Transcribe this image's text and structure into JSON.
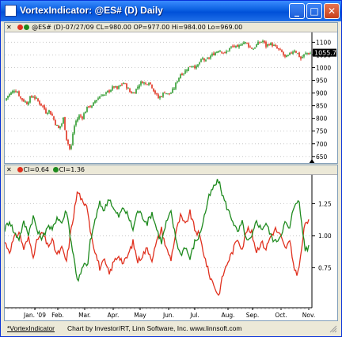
{
  "window": {
    "title": "VortexIndicator: @ES# (D) Daily",
    "buttons": {
      "minimize": "_",
      "maximize": "□",
      "close": "✕"
    }
  },
  "price_panel": {
    "close_glyph": "✕",
    "header": "@ES# (D)-07/27/09 CL=980.00 OP=977.00 Hi=984.00 Lo=969.00",
    "last_price_label": "1055.75",
    "colors": {
      "up": "#2e9b2e",
      "down": "#e0301e",
      "price_tag_bg": "#000000"
    }
  },
  "indicator_panel": {
    "close_glyph": "✕",
    "legend": [
      {
        "label": "CI=0.64",
        "color": "#e0301e"
      },
      {
        "label": "CI=1.36",
        "color": "#1e8a1e"
      }
    ]
  },
  "footer": {
    "link": "*VortexIndicator",
    "credit": "Chart by Investor/RT, Linn Software, Inc. www.linnsoft.com"
  },
  "chart_data": [
    {
      "type": "candlestick",
      "ylim": [
        640,
        1120
      ],
      "yticks": [
        650,
        700,
        750,
        800,
        850,
        900,
        950,
        1000,
        1050,
        1100
      ],
      "last_value": 1055.75,
      "anchors": [
        [
          0,
          870
        ],
        [
          4,
          890
        ],
        [
          8,
          900
        ],
        [
          12,
          912
        ],
        [
          16,
          905
        ],
        [
          20,
          880
        ],
        [
          24,
          870
        ],
        [
          28,
          860
        ],
        [
          32,
          880
        ],
        [
          36,
          888
        ],
        [
          40,
          875
        ],
        [
          44,
          860
        ],
        [
          48,
          848
        ],
        [
          52,
          825
        ],
        [
          56,
          830
        ],
        [
          60,
          810
        ],
        [
          64,
          780
        ],
        [
          68,
          760
        ],
        [
          72,
          780
        ],
        [
          74,
          800
        ],
        [
          76,
          760
        ],
        [
          78,
          720
        ],
        [
          80,
          700
        ],
        [
          82,
          680
        ],
        [
          84,
          690
        ],
        [
          86,
          740
        ],
        [
          88,
          770
        ],
        [
          90,
          790
        ],
        [
          94,
          810
        ],
        [
          98,
          805
        ],
        [
          102,
          830
        ],
        [
          106,
          850
        ],
        [
          110,
          845
        ],
        [
          114,
          870
        ],
        [
          118,
          880
        ],
        [
          122,
          895
        ],
        [
          126,
          890
        ],
        [
          130,
          905
        ],
        [
          134,
          915
        ],
        [
          138,
          925
        ],
        [
          142,
          915
        ],
        [
          146,
          930
        ],
        [
          150,
          940
        ],
        [
          154,
          925
        ],
        [
          158,
          905
        ],
        [
          162,
          900
        ],
        [
          166,
          915
        ],
        [
          170,
          935
        ],
        [
          174,
          945
        ],
        [
          178,
          935
        ],
        [
          182,
          945
        ],
        [
          186,
          925
        ],
        [
          190,
          900
        ],
        [
          194,
          880
        ],
        [
          198,
          890
        ],
        [
          202,
          905
        ],
        [
          206,
          895
        ],
        [
          210,
          900
        ],
        [
          214,
          920
        ],
        [
          218,
          950
        ],
        [
          222,
          975
        ],
        [
          226,
          980
        ],
        [
          230,
          995
        ],
        [
          234,
          1005
        ],
        [
          238,
          1010
        ],
        [
          242,
          1000
        ],
        [
          246,
          1020
        ],
        [
          250,
          1035
        ],
        [
          254,
          1025
        ],
        [
          258,
          1040
        ],
        [
          262,
          1050
        ],
        [
          266,
          1060
        ],
        [
          270,
          1070
        ],
        [
          274,
          1065
        ],
        [
          278,
          1055
        ],
        [
          282,
          1070
        ],
        [
          286,
          1080
        ],
        [
          290,
          1085
        ],
        [
          294,
          1075
        ],
        [
          298,
          1095
        ],
        [
          302,
          1100
        ],
        [
          306,
          1095
        ],
        [
          310,
          1080
        ],
        [
          314,
          1075
        ],
        [
          318,
          1090
        ],
        [
          322,
          1100
        ],
        [
          326,
          1105
        ],
        [
          330,
          1085
        ],
        [
          334,
          1095
        ],
        [
          338,
          1090
        ],
        [
          342,
          1080
        ],
        [
          346,
          1070
        ],
        [
          350,
          1060
        ],
        [
          354,
          1040
        ],
        [
          358,
          1045
        ],
        [
          362,
          1060
        ],
        [
          366,
          1070
        ],
        [
          370,
          1055
        ],
        [
          374,
          1035
        ],
        [
          378,
          1050
        ],
        [
          382,
          1058
        ],
        [
          385,
          1056
        ]
      ]
    },
    {
      "type": "line",
      "ylim": [
        0.45,
        1.45
      ],
      "yticks": [
        0.75,
        1.0,
        1.25
      ],
      "xlabels": [
        "Jan. '09",
        "Feb.",
        "Mar.",
        "Apr.",
        "May",
        "Jun.",
        "Jul.",
        "Aug.",
        "Sep.",
        "Oct.",
        "Nov."
      ],
      "series": [
        {
          "name": "CI=0.64",
          "color": "#e0301e",
          "anchors": [
            [
              0,
              0.95
            ],
            [
              6,
              0.88
            ],
            [
              12,
              0.98
            ],
            [
              18,
              1.03
            ],
            [
              24,
              0.9
            ],
            [
              30,
              0.98
            ],
            [
              36,
              0.85
            ],
            [
              42,
              0.98
            ],
            [
              48,
              1.02
            ],
            [
              54,
              0.92
            ],
            [
              60,
              0.96
            ],
            [
              66,
              0.85
            ],
            [
              72,
              0.9
            ],
            [
              78,
              0.8
            ],
            [
              84,
              1.05
            ],
            [
              88,
              1.2
            ],
            [
              92,
              1.35
            ],
            [
              96,
              1.3
            ],
            [
              100,
              1.22
            ],
            [
              104,
              1.25
            ],
            [
              108,
              1.05
            ],
            [
              114,
              0.88
            ],
            [
              120,
              0.75
            ],
            [
              126,
              0.8
            ],
            [
              132,
              0.7
            ],
            [
              138,
              0.8
            ],
            [
              144,
              0.85
            ],
            [
              150,
              0.78
            ],
            [
              156,
              0.85
            ],
            [
              162,
              0.95
            ],
            [
              168,
              0.8
            ],
            [
              174,
              0.85
            ],
            [
              180,
              0.9
            ],
            [
              186,
              0.82
            ],
            [
              192,
              0.95
            ],
            [
              198,
              1.05
            ],
            [
              204,
              0.9
            ],
            [
              210,
              0.82
            ],
            [
              216,
              1.02
            ],
            [
              222,
              1.15
            ],
            [
              228,
              1.08
            ],
            [
              234,
              1.18
            ],
            [
              240,
              1.05
            ],
            [
              246,
              1.0
            ],
            [
              252,
              0.85
            ],
            [
              258,
              0.7
            ],
            [
              264,
              0.62
            ],
            [
              270,
              0.53
            ],
            [
              276,
              0.7
            ],
            [
              282,
              0.8
            ],
            [
              288,
              0.88
            ],
            [
              294,
              0.98
            ],
            [
              300,
              0.9
            ],
            [
              306,
              1.05
            ],
            [
              312,
              1.02
            ],
            [
              318,
              0.88
            ],
            [
              324,
              0.95
            ],
            [
              330,
              0.9
            ],
            [
              336,
              1.0
            ],
            [
              342,
              1.05
            ],
            [
              348,
              1.0
            ],
            [
              354,
              0.9
            ],
            [
              360,
              0.95
            ],
            [
              364,
              0.8
            ],
            [
              368,
              0.7
            ],
            [
              372,
              0.75
            ],
            [
              376,
              0.95
            ],
            [
              380,
              1.12
            ],
            [
              385,
              1.1
            ]
          ]
        },
        {
          "name": "CI=1.36",
          "color": "#1e8a1e",
          "anchors": [
            [
              0,
              1.05
            ],
            [
              6,
              1.12
            ],
            [
              12,
              1.02
            ],
            [
              18,
              0.98
            ],
            [
              24,
              1.1
            ],
            [
              30,
              1.02
            ],
            [
              36,
              1.15
            ],
            [
              42,
              1.02
            ],
            [
              48,
              0.98
            ],
            [
              54,
              1.08
            ],
            [
              60,
              1.04
            ],
            [
              66,
              1.15
            ],
            [
              72,
              1.1
            ],
            [
              78,
              1.2
            ],
            [
              84,
              0.95
            ],
            [
              88,
              0.8
            ],
            [
              92,
              0.65
            ],
            [
              96,
              0.7
            ],
            [
              100,
              0.78
            ],
            [
              104,
              0.75
            ],
            [
              108,
              0.95
            ],
            [
              114,
              1.12
            ],
            [
              120,
              1.25
            ],
            [
              126,
              1.2
            ],
            [
              132,
              1.3
            ],
            [
              138,
              1.2
            ],
            [
              144,
              1.15
            ],
            [
              150,
              1.22
            ],
            [
              156,
              1.15
            ],
            [
              162,
              1.05
            ],
            [
              168,
              1.2
            ],
            [
              174,
              1.15
            ],
            [
              180,
              1.1
            ],
            [
              186,
              1.18
            ],
            [
              192,
              1.05
            ],
            [
              198,
              0.95
            ],
            [
              204,
              1.1
            ],
            [
              210,
              1.18
            ],
            [
              216,
              0.98
            ],
            [
              222,
              0.85
            ],
            [
              228,
              0.92
            ],
            [
              234,
              0.82
            ],
            [
              240,
              0.95
            ],
            [
              246,
              1.0
            ],
            [
              252,
              1.15
            ],
            [
              258,
              1.3
            ],
            [
              264,
              1.38
            ],
            [
              270,
              1.43
            ],
            [
              276,
              1.3
            ],
            [
              282,
              1.2
            ],
            [
              288,
              1.12
            ],
            [
              294,
              1.02
            ],
            [
              300,
              1.1
            ],
            [
              306,
              0.95
            ],
            [
              312,
              0.98
            ],
            [
              318,
              1.12
            ],
            [
              324,
              1.05
            ],
            [
              330,
              1.1
            ],
            [
              336,
              1.0
            ],
            [
              342,
              0.95
            ],
            [
              348,
              1.0
            ],
            [
              354,
              1.1
            ],
            [
              360,
              1.05
            ],
            [
              364,
              1.2
            ],
            [
              368,
              1.28
            ],
            [
              372,
              1.25
            ],
            [
              376,
              1.05
            ],
            [
              380,
              0.88
            ],
            [
              385,
              0.92
            ]
          ]
        }
      ]
    }
  ]
}
